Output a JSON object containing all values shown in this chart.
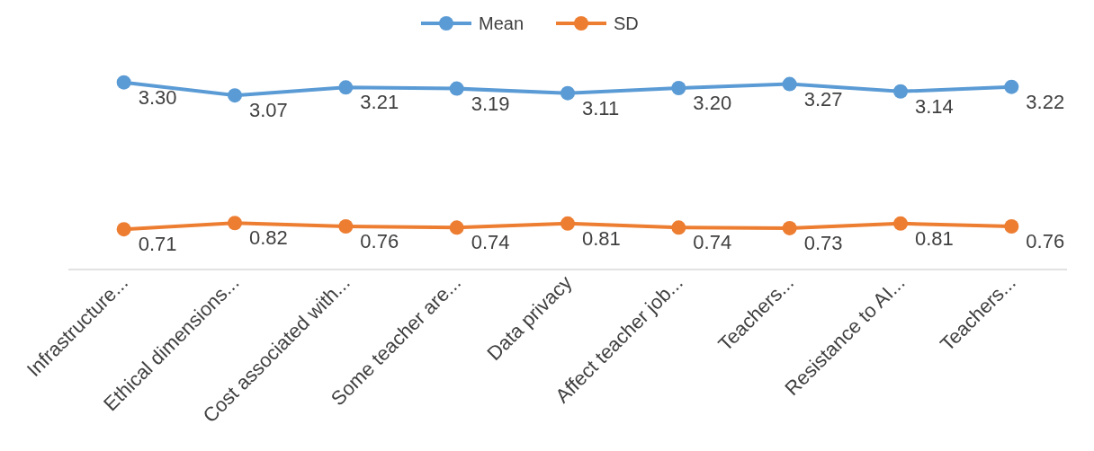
{
  "chart_data": {
    "type": "line",
    "categories": [
      "Infrastructure...",
      "Ethical dimensions...",
      "Cost associated with...",
      "Some teacher are...",
      "Data privacy",
      "Affect teacher job...",
      "Teachers...",
      "Resistance to AI...",
      "Teachers..."
    ],
    "series": [
      {
        "name": "Mean",
        "color": "#5b9bd5",
        "values": [
          3.3,
          3.07,
          3.21,
          3.19,
          3.11,
          3.2,
          3.27,
          3.14,
          3.22
        ],
        "value_labels": [
          "3.30",
          "3.07",
          "3.21",
          "3.19",
          "3.11",
          "3.20",
          "3.27",
          "3.14",
          "3.22"
        ]
      },
      {
        "name": "SD",
        "color": "#ed7d31",
        "values": [
          0.71,
          0.82,
          0.76,
          0.74,
          0.81,
          0.74,
          0.73,
          0.81,
          0.76
        ],
        "value_labels": [
          "0.71",
          "0.82",
          "0.76",
          "0.74",
          "0.81",
          "0.74",
          "0.73",
          "0.81",
          "0.76"
        ]
      }
    ],
    "legend": "top",
    "marker": "circle",
    "line_style": "solid"
  }
}
